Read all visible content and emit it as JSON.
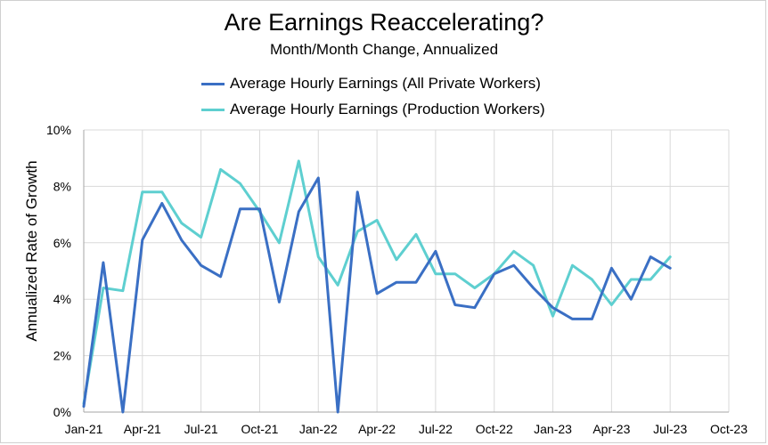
{
  "chart_data": {
    "type": "line",
    "title": "Are Earnings Reaccelerating?",
    "subtitle": "Month/Month Change, Annualized",
    "xlabel": "",
    "ylabel": "Annualized Rate of Growth",
    "x_ticks": [
      "Jan-21",
      "Apr-21",
      "Jul-21",
      "Oct-21",
      "Jan-22",
      "Apr-22",
      "Jul-22",
      "Oct-22",
      "Jan-23",
      "Apr-23",
      "Jul-23",
      "Oct-23"
    ],
    "y_ticks": [
      "0%",
      "2%",
      "4%",
      "6%",
      "8%",
      "10%"
    ],
    "ylim": [
      0,
      10
    ],
    "grid": true,
    "legend_position": "top",
    "series": [
      {
        "name": "Average Hourly Earnings (All Private Workers)",
        "color": "#3a6fc4",
        "values": [
          0.2,
          5.3,
          0.0,
          6.1,
          7.4,
          6.1,
          5.2,
          4.8,
          7.2,
          7.2,
          3.9,
          7.1,
          8.3,
          0.0,
          7.8,
          4.2,
          4.6,
          4.6,
          5.7,
          3.8,
          3.7,
          4.9,
          5.2,
          4.4,
          3.7,
          3.3,
          3.3,
          5.1,
          4.0,
          5.5,
          5.1
        ]
      },
      {
        "name": "Average Hourly Earnings (Production Workers)",
        "color": "#5ecfd0",
        "values": [
          0.3,
          4.4,
          4.3,
          7.8,
          7.8,
          6.7,
          6.2,
          8.6,
          8.1,
          7.1,
          6.0,
          8.9,
          5.5,
          4.5,
          6.4,
          6.8,
          5.4,
          6.3,
          4.9,
          4.9,
          4.4,
          4.9,
          5.7,
          5.2,
          3.4,
          5.2,
          4.7,
          3.8,
          4.7,
          4.7,
          5.5
        ]
      }
    ]
  }
}
